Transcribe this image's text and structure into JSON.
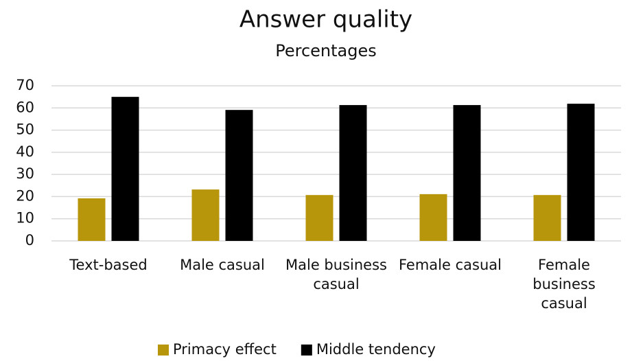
{
  "chart_data": {
    "type": "bar",
    "title": "Answer quality",
    "subtitle": "Percentages",
    "categories": [
      "Text-based",
      "Male casual",
      "Male business casual",
      "Female casual",
      "Female business casual"
    ],
    "series": [
      {
        "name": "Primacy effect",
        "color": "#b8960c",
        "values": [
          19.2,
          23.2,
          20.7,
          21.1,
          20.7
        ]
      },
      {
        "name": "Middle tendency",
        "color": "#000000",
        "values": [
          65.0,
          59.1,
          61.3,
          61.3,
          61.9
        ]
      }
    ],
    "ylim": [
      0,
      70
    ],
    "yticks": [
      0,
      10,
      20,
      30,
      40,
      50,
      60,
      70
    ],
    "grid": true,
    "legend": "bottom"
  }
}
